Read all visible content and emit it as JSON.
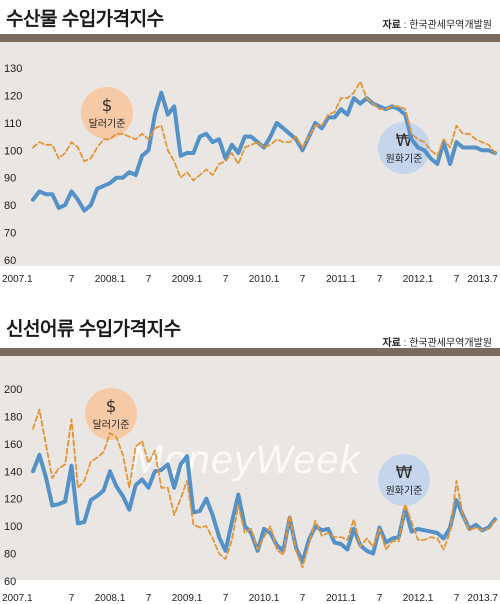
{
  "chart_data": [
    {
      "type": "line",
      "title": "수산물 수입가격지수",
      "source_label": "자료",
      "source_value": "한국관세무역개발원",
      "x_tick_labels": [
        "2007.1",
        "7",
        "2008.1",
        "7",
        "2009.1",
        "7",
        "2010.1",
        "7",
        "2011.1",
        "7",
        "2012.1",
        "7",
        "2013.7"
      ],
      "y_ticks": [
        60,
        70,
        80,
        90,
        100,
        110,
        120,
        130
      ],
      "ylim": [
        60,
        130
      ],
      "annotations": [
        {
          "symbol": "$",
          "label": "달러기준",
          "color": "#f6caa6"
        },
        {
          "symbol": "₩",
          "label": "원화기준",
          "color": "#c5d6ec"
        }
      ],
      "series": [
        {
          "key": "krw",
          "color": "#5591c9",
          "values": [
            82,
            85,
            84,
            84,
            79,
            80,
            85,
            82,
            78,
            80,
            86,
            87,
            88,
            90,
            90,
            92,
            91,
            98,
            100,
            113,
            121,
            113,
            116,
            98,
            99,
            99,
            105,
            106,
            103,
            104,
            97,
            102,
            99,
            105,
            105,
            103,
            101,
            105,
            110,
            108,
            106,
            104,
            100,
            105,
            110,
            108,
            112,
            112,
            115,
            113,
            119,
            117,
            119,
            117,
            116,
            115,
            116,
            115,
            113,
            104,
            101,
            100,
            97,
            95,
            103,
            95,
            103,
            101,
            101,
            101,
            100,
            100,
            99
          ]
        },
        {
          "key": "usd",
          "color": "#e39537",
          "values": [
            101,
            103,
            102,
            102,
            97,
            99,
            103,
            101,
            96,
            97,
            101,
            104,
            104,
            106,
            106,
            105,
            104,
            106,
            104,
            108,
            109,
            100,
            96,
            90,
            92,
            89,
            91,
            93,
            91,
            95,
            96,
            99,
            95,
            101,
            102,
            103,
            101,
            102,
            104,
            103,
            103,
            105,
            101,
            105,
            109,
            109,
            113,
            114,
            119,
            119,
            121,
            125,
            119,
            117,
            115,
            115,
            116,
            116,
            115,
            106,
            104,
            103,
            100,
            98,
            104,
            101,
            109,
            106,
            106,
            104,
            103,
            102,
            99
          ]
        }
      ]
    },
    {
      "type": "line",
      "title": "신선어류 수입가격지수",
      "source_label": "자료",
      "source_value": "한국관세무역개발원",
      "x_tick_labels": [
        "2007.1",
        "7",
        "2008.1",
        "7",
        "2009.1",
        "7",
        "2010.1",
        "7",
        "2011.1",
        "7",
        "2012.1",
        "7",
        "2013.7"
      ],
      "y_ticks": [
        60,
        80,
        100,
        120,
        140,
        160,
        180,
        200
      ],
      "ylim": [
        60,
        200
      ],
      "annotations": [
        {
          "symbol": "$",
          "label": "달러기준",
          "color": "#f6caa6"
        },
        {
          "symbol": "₩",
          "label": "원화기준",
          "color": "#c5d6ec"
        }
      ],
      "series": [
        {
          "key": "krw",
          "color": "#5591c9",
          "values": [
            140,
            152,
            136,
            115,
            116,
            118,
            144,
            102,
            103,
            119,
            122,
            126,
            140,
            129,
            122,
            112,
            130,
            134,
            128,
            140,
            141,
            145,
            128,
            145,
            151,
            110,
            111,
            120,
            108,
            92,
            82,
            103,
            123,
            100,
            95,
            82,
            98,
            95,
            86,
            82,
            106,
            84,
            74,
            90,
            100,
            97,
            98,
            88,
            87,
            83,
            98,
            86,
            82,
            80,
            99,
            88,
            91,
            92,
            113,
            96,
            98,
            97,
            96,
            95,
            91,
            99,
            119,
            108,
            98,
            101,
            97,
            99,
            105
          ]
        },
        {
          "key": "usd",
          "color": "#e39537",
          "values": [
            171,
            185,
            160,
            135,
            142,
            145,
            178,
            128,
            133,
            147,
            150,
            154,
            168,
            165,
            152,
            128,
            158,
            162,
            146,
            155,
            128,
            128,
            108,
            120,
            133,
            101,
            99,
            100,
            91,
            80,
            76,
            90,
            115,
            95,
            98,
            83,
            92,
            100,
            83,
            79,
            108,
            82,
            70,
            87,
            104,
            93,
            95,
            92,
            92,
            90,
            105,
            85,
            91,
            85,
            98,
            83,
            89,
            89,
            116,
            103,
            90,
            90,
            92,
            91,
            83,
            96,
            133,
            108,
            97,
            99,
            97,
            98,
            104
          ]
        }
      ]
    }
  ]
}
